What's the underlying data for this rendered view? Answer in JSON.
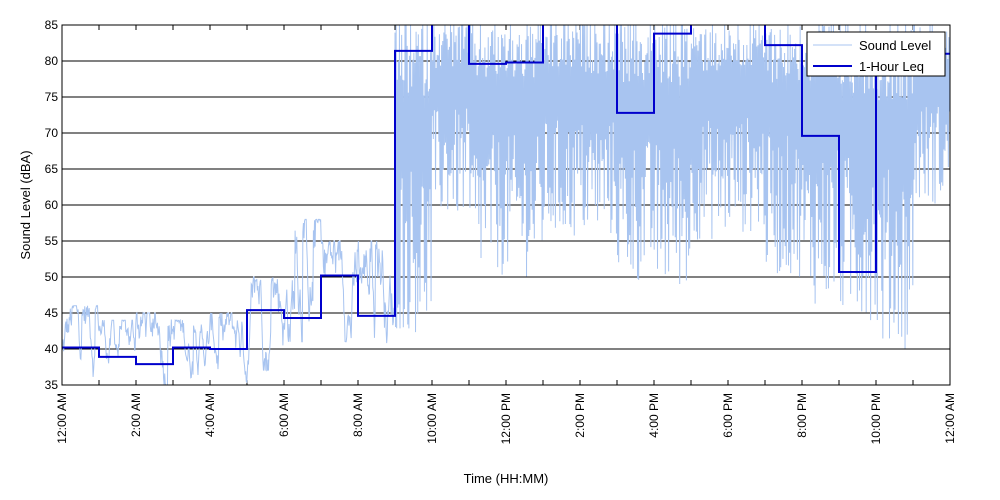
{
  "chart_data": {
    "type": "line",
    "title": "",
    "xlabel": "Time (HH:MM)",
    "ylabel": "Sound Level (dBA)",
    "ylim": [
      35,
      85
    ],
    "xlim_hours": [
      0,
      24
    ],
    "x_tick_hours": [
      0,
      2,
      4,
      6,
      8,
      10,
      12,
      14,
      16,
      18,
      20,
      22,
      24
    ],
    "x_tick_labels": [
      "12:00 AM",
      "2:00 AM",
      "4:00 AM",
      "6:00 AM",
      "8:00 AM",
      "10:00 AM",
      "12:00 PM",
      "2:00 PM",
      "4:00 PM",
      "6:00 PM",
      "8:00 PM",
      "10:00 PM",
      "12:00 AM"
    ],
    "y_ticks": [
      35,
      40,
      45,
      50,
      55,
      60,
      65,
      70,
      75,
      80,
      85
    ],
    "grid": "horizontal",
    "legend_position": "top-right",
    "colors": {
      "sound_level": "#a8c4f0",
      "leq": "#0000cc"
    },
    "series": [
      {
        "name": "Sound Level",
        "style": "thin-light",
        "hourly_envelope": {
          "hour": [
            0,
            1,
            2,
            3,
            4,
            5,
            6,
            7,
            8,
            9,
            10,
            11,
            12,
            13,
            14,
            15,
            16,
            17,
            18,
            19,
            20,
            21,
            22,
            23
          ],
          "min": [
            36,
            36,
            35,
            36,
            35,
            37,
            41,
            41,
            40,
            42,
            58,
            50,
            50,
            55,
            55,
            49,
            48,
            55,
            56,
            50,
            46,
            44,
            40,
            60
          ],
          "max": [
            46,
            44,
            45,
            44,
            45,
            50,
            58,
            55,
            55,
            86,
            86,
            86,
            86,
            86,
            86,
            86,
            86,
            86,
            86,
            86,
            86,
            86,
            86,
            86
          ]
        }
      },
      {
        "name": "1-Hour Leq",
        "style": "step",
        "hour_start": [
          0,
          1,
          2,
          3,
          4,
          5,
          6,
          7,
          8,
          9,
          10,
          11,
          12,
          13,
          14,
          15,
          16,
          17,
          18,
          19,
          20,
          21,
          22,
          23
        ],
        "values": [
          40.2,
          38.9,
          37.9,
          40.2,
          40.0,
          45.4,
          44.3,
          50.2,
          44.6,
          81.4,
          86.0,
          79.6,
          79.8,
          86.0,
          86.0,
          72.8,
          83.8,
          86.0,
          86.0,
          82.2,
          69.6,
          50.7,
          80.5,
          81.0
        ]
      }
    ]
  }
}
